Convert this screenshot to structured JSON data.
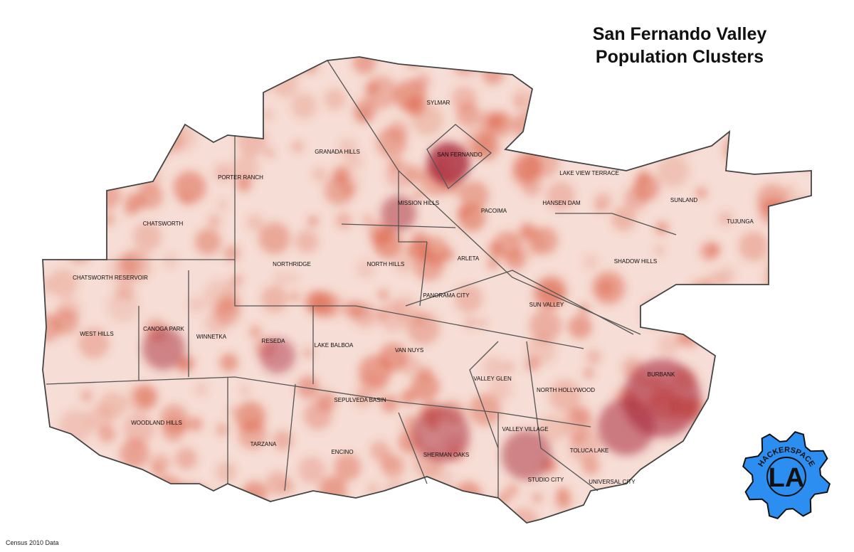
{
  "header": {
    "title_lines": [
      "San Fernando Valley",
      "Population Clusters"
    ]
  },
  "map": {
    "neighborhoods": [
      "SYLMAR",
      "SAN FERNANDO",
      "GRANADA HILLS",
      "LAKE VIEW TERRACE",
      "PORTER RANCH",
      "MISSION HILLS",
      "HANSEN DAM",
      "SUNLAND",
      "PACOIMA",
      "TUJUNGA",
      "CHATSWORTH",
      "ARLETA",
      "NORTHRIDGE",
      "NORTH HILLS",
      "SHADOW HILLS",
      "CHATSWORTH RESERVOIR",
      "PANORAMA CITY",
      "SUN VALLEY",
      "WEST HILLS",
      "CANOGA PARK",
      "WINNETKA",
      "RESEDA",
      "LAKE BALBOA",
      "VAN NUYS",
      "BURBANK",
      "VALLEY GLEN",
      "NORTH HOLLYWOOD",
      "SEPULVEDA BASIN",
      "WOODLAND HILLS",
      "VALLEY VILLAGE",
      "TARZANA",
      "ENCINO",
      "SHERMAN OAKS",
      "TOLUCA LAKE",
      "STUDIO CITY",
      "UNIVERSAL CITY"
    ]
  },
  "footer": {
    "source": "Census 2010 Data"
  },
  "logo": {
    "ring_text": "HACKERSPACE",
    "center_text": "LA"
  }
}
